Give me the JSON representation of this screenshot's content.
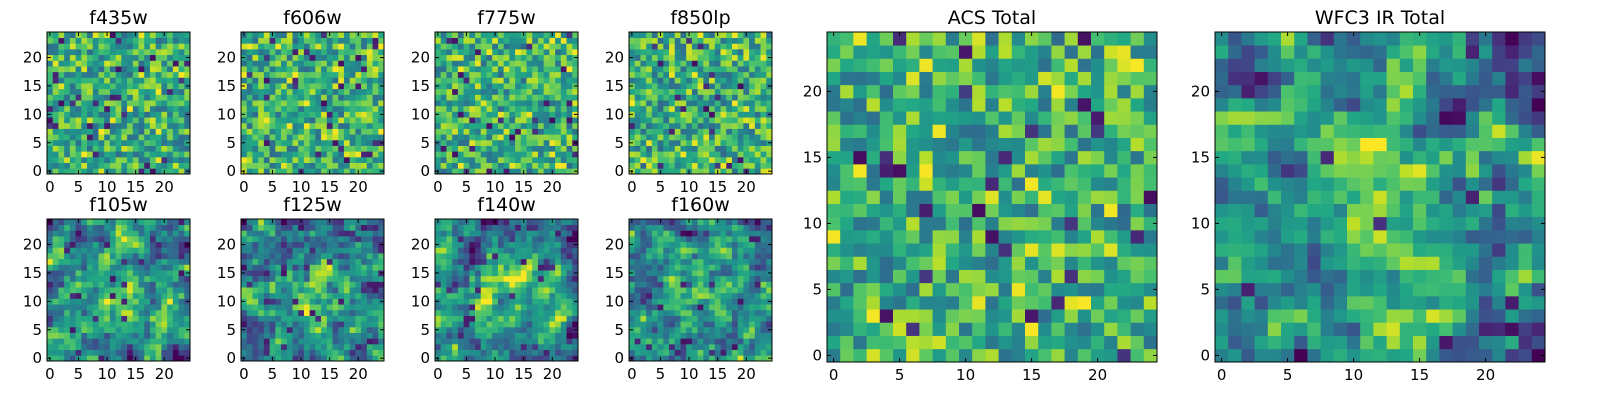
{
  "chart_data": [
    {
      "type": "heatmap",
      "title": "f435w",
      "size": [
        25,
        25
      ],
      "xticks": [
        0,
        5,
        10,
        15,
        20
      ],
      "yticks": [
        0,
        5,
        10,
        15,
        20
      ],
      "xlim": [
        -0.5,
        24.5
      ],
      "ylim": [
        -0.5,
        24.5
      ],
      "colormap": "viridis",
      "texture": "fine"
    },
    {
      "type": "heatmap",
      "title": "f606w",
      "size": [
        25,
        25
      ],
      "xticks": [
        0,
        5,
        10,
        15,
        20
      ],
      "yticks": [
        0,
        5,
        10,
        15,
        20
      ],
      "xlim": [
        -0.5,
        24.5
      ],
      "ylim": [
        -0.5,
        24.5
      ],
      "colormap": "viridis",
      "texture": "fine"
    },
    {
      "type": "heatmap",
      "title": "f775w",
      "size": [
        25,
        25
      ],
      "xticks": [
        0,
        5,
        10,
        15,
        20
      ],
      "yticks": [
        0,
        5,
        10,
        15,
        20
      ],
      "xlim": [
        -0.5,
        24.5
      ],
      "ylim": [
        -0.5,
        24.5
      ],
      "colormap": "viridis",
      "texture": "fine"
    },
    {
      "type": "heatmap",
      "title": "f850lp",
      "size": [
        25,
        25
      ],
      "xticks": [
        0,
        5,
        10,
        15,
        20
      ],
      "yticks": [
        0,
        5,
        10,
        15,
        20
      ],
      "xlim": [
        -0.5,
        24.5
      ],
      "ylim": [
        -0.5,
        24.5
      ],
      "colormap": "viridis",
      "texture": "fine"
    },
    {
      "type": "heatmap",
      "title": "f105w",
      "size": [
        25,
        25
      ],
      "xticks": [
        0,
        5,
        10,
        15,
        20
      ],
      "yticks": [
        0,
        5,
        10,
        15,
        20
      ],
      "xlim": [
        -0.5,
        24.5
      ],
      "ylim": [
        -0.5,
        24.5
      ],
      "colormap": "viridis",
      "texture": "blob"
    },
    {
      "type": "heatmap",
      "title": "f125w",
      "size": [
        25,
        25
      ],
      "xticks": [
        0,
        5,
        10,
        15,
        20
      ],
      "yticks": [
        0,
        5,
        10,
        15,
        20
      ],
      "xlim": [
        -0.5,
        24.5
      ],
      "ylim": [
        -0.5,
        24.5
      ],
      "colormap": "viridis",
      "texture": "blob"
    },
    {
      "type": "heatmap",
      "title": "f140w",
      "size": [
        25,
        25
      ],
      "xticks": [
        0,
        5,
        10,
        15,
        20
      ],
      "yticks": [
        0,
        5,
        10,
        15,
        20
      ],
      "xlim": [
        -0.5,
        24.5
      ],
      "ylim": [
        -0.5,
        24.5
      ],
      "colormap": "viridis",
      "texture": "blob"
    },
    {
      "type": "heatmap",
      "title": "f160w",
      "size": [
        25,
        25
      ],
      "xticks": [
        0,
        5,
        10,
        15,
        20
      ],
      "yticks": [
        0,
        5,
        10,
        15,
        20
      ],
      "xlim": [
        -0.5,
        24.5
      ],
      "ylim": [
        -0.5,
        24.5
      ],
      "colormap": "viridis",
      "texture": "blob"
    },
    {
      "type": "heatmap",
      "title": "ACS Total",
      "size": [
        25,
        25
      ],
      "xticks": [
        0,
        5,
        10,
        15,
        20
      ],
      "yticks": [
        0,
        5,
        10,
        15,
        20
      ],
      "xlim": [
        -0.5,
        24.5
      ],
      "ylim": [
        -0.5,
        24.5
      ],
      "colormap": "viridis",
      "texture": "fine"
    },
    {
      "type": "heatmap",
      "title": "WFC3 IR Total",
      "size": [
        25,
        25
      ],
      "xticks": [
        0,
        5,
        10,
        15,
        20
      ],
      "yticks": [
        0,
        5,
        10,
        15,
        20
      ],
      "xlim": [
        -0.5,
        24.5
      ],
      "ylim": [
        -0.5,
        24.5
      ],
      "colormap": "viridis",
      "texture": "blob"
    }
  ]
}
